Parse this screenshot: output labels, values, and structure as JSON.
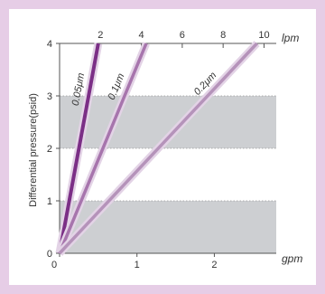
{
  "chart_data": {
    "type": "line",
    "title": "",
    "ylabel": "Differential pressure(psid)",
    "x_unit": "gpm",
    "x2_unit": "lpm",
    "xlim": [
      0,
      2.8
    ],
    "ylim": [
      0,
      4
    ],
    "x_ticks": [
      "0",
      "1",
      "2"
    ],
    "x2_ticks": [
      {
        "value": 2,
        "label": "2"
      },
      {
        "value": 4,
        "label": "4"
      },
      {
        "value": 6,
        "label": "6"
      },
      {
        "value": 8,
        "label": "8"
      },
      {
        "value": 10,
        "label": "10"
      }
    ],
    "y_ticks": [
      "0",
      "1",
      "2",
      "3",
      "4"
    ],
    "shaded_bands": [
      [
        0,
        1
      ],
      [
        2,
        3
      ]
    ],
    "grid": true,
    "series": [
      {
        "name": "0.05μm",
        "x": [
          0,
          0.5
        ],
        "y": [
          0,
          4
        ],
        "color": "#7b2f86"
      },
      {
        "name": "0.1μm",
        "x": [
          0,
          1.12
        ],
        "y": [
          0,
          4
        ],
        "color": "#a775ad"
      },
      {
        "name": "0.2μm",
        "x": [
          0,
          2.55
        ],
        "y": [
          0,
          4
        ],
        "color": "#b593ba"
      }
    ]
  }
}
